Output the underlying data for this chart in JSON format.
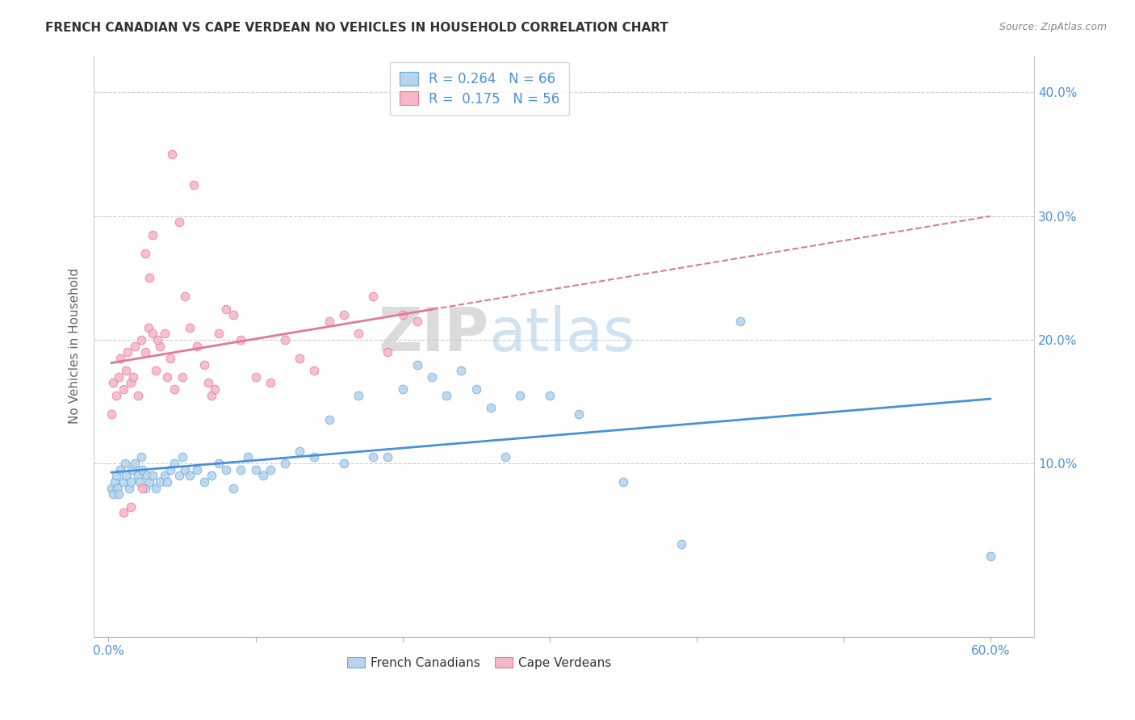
{
  "title": "FRENCH CANADIAN VS CAPE VERDEAN NO VEHICLES IN HOUSEHOLD CORRELATION CHART",
  "source": "Source: ZipAtlas.com",
  "ylabel": "No Vehicles in Household",
  "xlabel_vals": [
    0,
    10,
    20,
    30,
    40,
    50,
    60
  ],
  "ytick_vals": [
    10,
    20,
    30,
    40
  ],
  "xlim": [
    -1,
    63
  ],
  "ylim": [
    -4,
    43
  ],
  "blue_R": "0.264",
  "blue_N": "66",
  "pink_R": "0.175",
  "pink_N": "56",
  "blue_fill": "#b8d4ed",
  "pink_fill": "#f5b8c8",
  "blue_edge": "#6aaad4",
  "pink_edge": "#e87898",
  "blue_line": "#4a90d9",
  "pink_line": "#e07898",
  "right_tick_color": "#4a90d9",
  "watermark": "ZIPatlas",
  "french_canadian_x": [
    0.2,
    0.3,
    0.4,
    0.5,
    0.6,
    0.7,
    0.8,
    1.0,
    1.1,
    1.2,
    1.4,
    1.5,
    1.6,
    1.8,
    2.0,
    2.1,
    2.2,
    2.3,
    2.5,
    2.6,
    2.8,
    3.0,
    3.2,
    3.5,
    3.8,
    4.0,
    4.2,
    4.5,
    4.8,
    5.0,
    5.2,
    5.5,
    6.0,
    6.5,
    7.0,
    7.5,
    8.0,
    8.5,
    9.0,
    9.5,
    10.0,
    10.5,
    11.0,
    12.0,
    13.0,
    14.0,
    15.0,
    16.0,
    17.0,
    18.0,
    19.0,
    20.0,
    21.0,
    22.0,
    23.0,
    24.0,
    25.0,
    26.0,
    27.0,
    28.0,
    30.0,
    32.0,
    35.0,
    39.0,
    43.0,
    60.0
  ],
  "french_canadian_y": [
    8.0,
    7.5,
    8.5,
    9.0,
    8.0,
    7.5,
    9.5,
    8.5,
    10.0,
    9.0,
    8.0,
    8.5,
    9.5,
    10.0,
    9.0,
    8.5,
    10.5,
    9.5,
    8.0,
    9.0,
    8.5,
    9.0,
    8.0,
    8.5,
    9.0,
    8.5,
    9.5,
    10.0,
    9.0,
    10.5,
    9.5,
    9.0,
    9.5,
    8.5,
    9.0,
    10.0,
    9.5,
    8.0,
    9.5,
    10.5,
    9.5,
    9.0,
    9.5,
    10.0,
    11.0,
    10.5,
    13.5,
    10.0,
    15.5,
    10.5,
    10.5,
    16.0,
    18.0,
    17.0,
    15.5,
    17.5,
    16.0,
    14.5,
    10.5,
    15.5,
    15.5,
    14.0,
    8.5,
    3.5,
    21.5,
    2.5
  ],
  "cape_verdean_x": [
    0.2,
    0.3,
    0.5,
    0.7,
    0.8,
    1.0,
    1.2,
    1.3,
    1.5,
    1.7,
    1.8,
    2.0,
    2.2,
    2.5,
    2.7,
    3.0,
    3.2,
    3.5,
    3.8,
    4.0,
    4.2,
    4.5,
    5.0,
    5.5,
    6.0,
    6.5,
    7.0,
    7.5,
    8.0,
    9.0,
    10.0,
    11.0,
    12.0,
    13.0,
    14.0,
    15.0,
    16.0,
    17.0,
    18.0,
    19.0,
    20.0,
    21.0,
    2.8,
    3.3,
    5.2,
    6.8,
    7.2,
    8.5,
    3.0,
    2.5,
    4.8,
    5.8,
    4.3,
    2.3,
    1.5,
    1.0
  ],
  "cape_verdean_y": [
    14.0,
    16.5,
    15.5,
    17.0,
    18.5,
    16.0,
    17.5,
    19.0,
    16.5,
    17.0,
    19.5,
    15.5,
    20.0,
    19.0,
    21.0,
    20.5,
    17.5,
    19.5,
    20.5,
    17.0,
    18.5,
    16.0,
    17.0,
    21.0,
    19.5,
    18.0,
    15.5,
    20.5,
    22.5,
    20.0,
    17.0,
    16.5,
    20.0,
    18.5,
    17.5,
    21.5,
    22.0,
    20.5,
    23.5,
    19.0,
    22.0,
    21.5,
    25.0,
    20.0,
    23.5,
    16.5,
    16.0,
    22.0,
    28.5,
    27.0,
    29.5,
    32.5,
    35.0,
    8.0,
    6.5,
    6.0
  ]
}
